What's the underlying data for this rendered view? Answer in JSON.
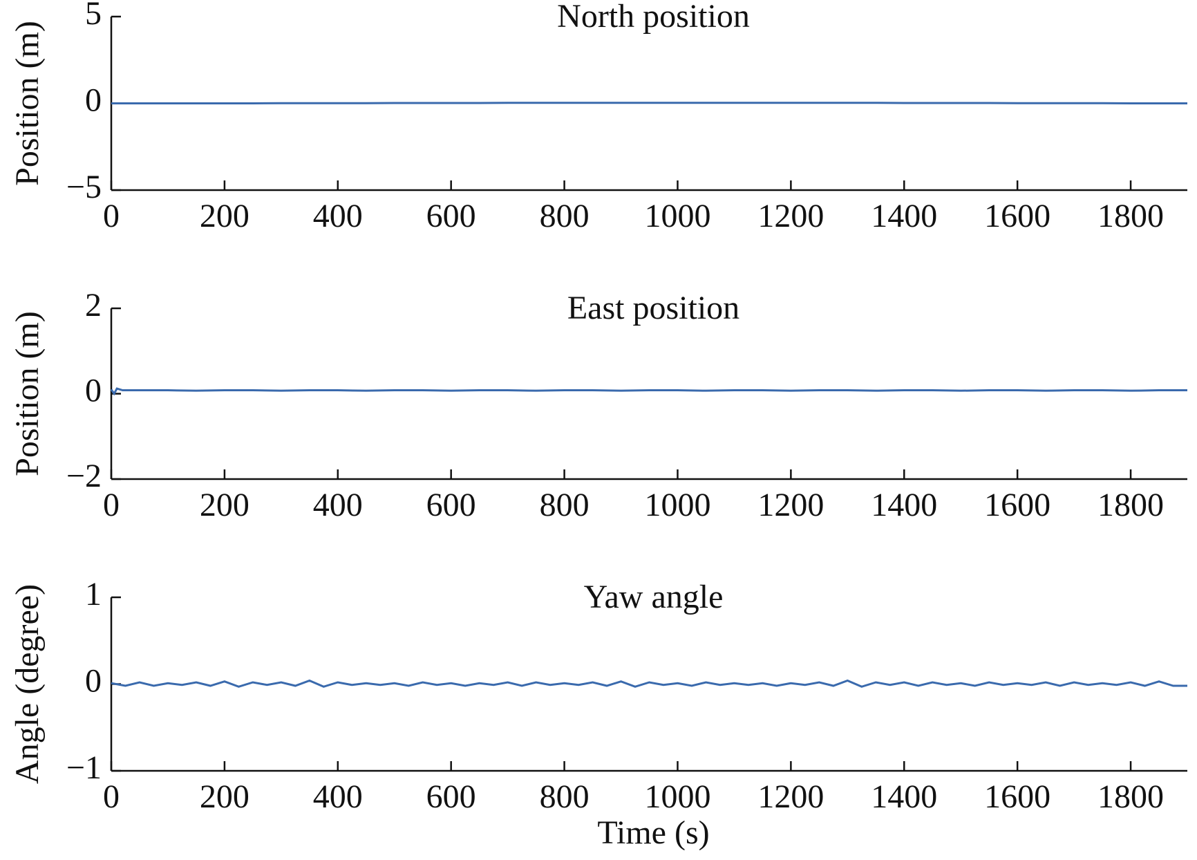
{
  "chart_data": [
    {
      "type": "line",
      "title": "North position",
      "y_label": "Position (m)",
      "x": [
        0,
        50,
        100,
        150,
        200,
        250,
        300,
        350,
        400,
        450,
        500,
        550,
        600,
        650,
        700,
        750,
        800,
        850,
        900,
        950,
        1000,
        1050,
        1100,
        1150,
        1200,
        1250,
        1300,
        1350,
        1400,
        1450,
        1500,
        1550,
        1600,
        1650,
        1700,
        1750,
        1800,
        1850,
        1900
      ],
      "series": [
        {
          "color": "#3a6aad",
          "values": [
            0,
            0,
            0,
            0,
            0,
            0,
            0.01,
            0.01,
            0.01,
            0.01,
            0.02,
            0.02,
            0.02,
            0.02,
            0.03,
            0.03,
            0.03,
            0.03,
            0.03,
            0.03,
            0.03,
            0.03,
            0.03,
            0.03,
            0.03,
            0.03,
            0.03,
            0.03,
            0.02,
            0.02,
            0.02,
            0.02,
            0.01,
            0.01,
            0.01,
            0.01,
            0,
            0,
            0
          ]
        }
      ],
      "xlim": [
        0,
        1900
      ],
      "xticks": [
        0,
        200,
        400,
        600,
        800,
        1000,
        1200,
        1400,
        1600,
        1800
      ],
      "ylim": [
        -5,
        5
      ],
      "yticks": [
        {
          "value": -5,
          "label": "−5"
        },
        0,
        5
      ]
    },
    {
      "type": "line",
      "title": "East position",
      "y_label": "Position (m)",
      "x": [
        0,
        5,
        10,
        20,
        50,
        100,
        150,
        200,
        250,
        300,
        350,
        400,
        450,
        500,
        550,
        600,
        650,
        700,
        750,
        800,
        850,
        900,
        950,
        1000,
        1050,
        1100,
        1150,
        1200,
        1250,
        1300,
        1350,
        1400,
        1450,
        1500,
        1550,
        1600,
        1650,
        1700,
        1750,
        1800,
        1850,
        1900
      ],
      "series": [
        {
          "color": "#3a6aad",
          "values": [
            0.1,
            0.0,
            0.12,
            0.08,
            0.08,
            0.08,
            0.07,
            0.08,
            0.08,
            0.07,
            0.08,
            0.08,
            0.07,
            0.08,
            0.08,
            0.07,
            0.08,
            0.08,
            0.07,
            0.08,
            0.08,
            0.07,
            0.08,
            0.08,
            0.07,
            0.08,
            0.08,
            0.07,
            0.08,
            0.08,
            0.07,
            0.08,
            0.08,
            0.07,
            0.08,
            0.08,
            0.07,
            0.08,
            0.08,
            0.07,
            0.08,
            0.08
          ]
        }
      ],
      "xlim": [
        0,
        1900
      ],
      "xticks": [
        0,
        200,
        400,
        600,
        800,
        1000,
        1200,
        1400,
        1600,
        1800
      ],
      "ylim": [
        -2,
        2
      ],
      "yticks": [
        {
          "value": -2,
          "label": "−2"
        },
        0,
        2
      ]
    },
    {
      "type": "line",
      "title": "Yaw angle",
      "y_label": "Angle (degree)",
      "x_label": "Time (s)",
      "x": [
        0,
        25,
        50,
        75,
        100,
        125,
        150,
        175,
        200,
        225,
        250,
        275,
        300,
        325,
        350,
        375,
        400,
        425,
        450,
        475,
        500,
        525,
        550,
        575,
        600,
        625,
        650,
        675,
        700,
        725,
        750,
        775,
        800,
        825,
        850,
        875,
        900,
        925,
        950,
        975,
        1000,
        1025,
        1050,
        1075,
        1100,
        1125,
        1150,
        1175,
        1200,
        1225,
        1250,
        1275,
        1300,
        1325,
        1350,
        1375,
        1400,
        1425,
        1450,
        1475,
        1500,
        1525,
        1550,
        1575,
        1600,
        1625,
        1650,
        1675,
        1700,
        1725,
        1750,
        1775,
        1800,
        1825,
        1850,
        1875,
        1900
      ],
      "series": [
        {
          "color": "#3a6aad",
          "values": [
            0.01,
            -0.02,
            0.02,
            -0.02,
            0.01,
            -0.01,
            0.02,
            -0.02,
            0.03,
            -0.03,
            0.02,
            -0.01,
            0.02,
            -0.02,
            0.04,
            -0.03,
            0.02,
            -0.01,
            0.01,
            -0.01,
            0.01,
            -0.02,
            0.02,
            -0.01,
            0.01,
            -0.02,
            0.01,
            -0.01,
            0.02,
            -0.02,
            0.02,
            -0.01,
            0.01,
            -0.01,
            0.02,
            -0.02,
            0.03,
            -0.03,
            0.02,
            -0.01,
            0.01,
            -0.02,
            0.02,
            -0.01,
            0.01,
            -0.01,
            0.01,
            -0.02,
            0.01,
            -0.01,
            0.02,
            -0.02,
            0.04,
            -0.03,
            0.02,
            -0.01,
            0.02,
            -0.02,
            0.02,
            -0.01,
            0.01,
            -0.02,
            0.02,
            -0.01,
            0.01,
            -0.01,
            0.02,
            -0.02,
            0.02,
            -0.01,
            0.01,
            -0.01,
            0.02,
            -0.02,
            0.03,
            -0.02,
            -0.02
          ]
        }
      ],
      "xlim": [
        0,
        1900
      ],
      "xticks": [
        0,
        200,
        400,
        600,
        800,
        1000,
        1200,
        1400,
        1600,
        1800
      ],
      "ylim": [
        -1,
        1
      ],
      "yticks": [
        {
          "value": -1,
          "label": "−1"
        },
        0,
        1
      ]
    }
  ]
}
